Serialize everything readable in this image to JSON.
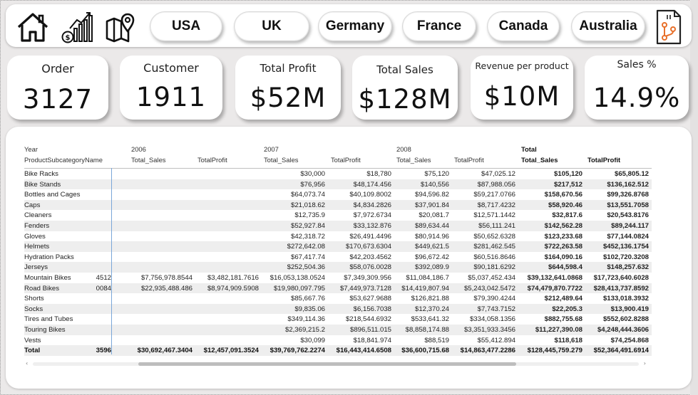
{
  "nav": {
    "countries": [
      "USA",
      "UK",
      "Germany",
      "France",
      "Canada",
      "Australia"
    ]
  },
  "kpis": [
    {
      "label": "Order",
      "value": "3127"
    },
    {
      "label": "Customer",
      "value": "1911"
    },
    {
      "label": "Total Profit",
      "value": "$52M"
    },
    {
      "label": "Total Sales",
      "value": "$128M"
    },
    {
      "label": "Revenue per product",
      "value": "$10M"
    },
    {
      "label": "Sales %",
      "value": "14.9%"
    }
  ],
  "matrix": {
    "row_header_1": "Year",
    "row_header_2": "ProductSubcategoryName",
    "years": [
      "2006",
      "2007",
      "2008",
      "Total"
    ],
    "measure_sales": "Total_Sales",
    "measure_profit": "TotalProfit",
    "rows": [
      {
        "name": "Bike Racks",
        "s06": "",
        "p06": "",
        "s07": "$30,000",
        "p07": "$18,780",
        "s08": "$75,120",
        "p08": "$47,025.12",
        "st": "$105,120",
        "pt": "$65,805.12"
      },
      {
        "name": "Bike Stands",
        "s06": "",
        "p06": "",
        "s07": "$76,956",
        "p07": "$48,174.456",
        "s08": "$140,556",
        "p08": "$87,988.056",
        "st": "$217,512",
        "pt": "$136,162.512"
      },
      {
        "name": "Bottles and Cages",
        "s06": "",
        "p06": "",
        "s07": "$64,073.74",
        "p07": "$40,109.8002",
        "s08": "$94,596.82",
        "p08": "$59,217.0766",
        "st": "$158,670.56",
        "pt": "$99,326.8768"
      },
      {
        "name": "Caps",
        "s06": "",
        "p06": "",
        "s07": "$21,018.62",
        "p07": "$4,834.2826",
        "s08": "$37,901.84",
        "p08": "$8,717.4232",
        "st": "$58,920.46",
        "pt": "$13,551.7058"
      },
      {
        "name": "Cleaners",
        "s06": "",
        "p06": "",
        "s07": "$12,735.9",
        "p07": "$7,972.6734",
        "s08": "$20,081.7",
        "p08": "$12,571.1442",
        "st": "$32,817.6",
        "pt": "$20,543.8176"
      },
      {
        "name": "Fenders",
        "s06": "",
        "p06": "",
        "s07": "$52,927.84",
        "p07": "$33,132.876",
        "s08": "$89,634.44",
        "p08": "$56,111.241",
        "st": "$142,562.28",
        "pt": "$89,244.117"
      },
      {
        "name": "Gloves",
        "s06": "",
        "p06": "",
        "s07": "$42,318.72",
        "p07": "$26,491.4496",
        "s08": "$80,914.96",
        "p08": "$50,652.6328",
        "st": "$123,233.68",
        "pt": "$77,144.0824"
      },
      {
        "name": "Helmets",
        "s06": "",
        "p06": "",
        "s07": "$272,642.08",
        "p07": "$170,673.6304",
        "s08": "$449,621.5",
        "p08": "$281,462.545",
        "st": "$722,263.58",
        "pt": "$452,136.1754"
      },
      {
        "name": "Hydration Packs",
        "s06": "",
        "p06": "",
        "s07": "$67,417.74",
        "p07": "$42,203.4562",
        "s08": "$96,672.42",
        "p08": "$60,516.8646",
        "st": "$164,090.16",
        "pt": "$102,720.3208"
      },
      {
        "name": "Jerseys",
        "s06": "",
        "p06": "",
        "s07": "$252,504.36",
        "p07": "$58,076.0028",
        "s08": "$392,089.9",
        "p08": "$90,181.6292",
        "st": "$644,598.4",
        "pt": "$148,257.632"
      },
      {
        "name": "Mountain Bikes",
        "lead": "4512",
        "s06": "$7,756,978.8544",
        "p06": "$3,482,181.7616",
        "s07": "$16,053,138.0524",
        "p07": "$7,349,309.956",
        "s08": "$11,084,186.7",
        "p08": "$5,037,452.434",
        "st": "$39,132,641.0868",
        "pt": "$17,723,640.6028"
      },
      {
        "name": "Road Bikes",
        "lead": "0084",
        "s06": "$22,935,488.486",
        "p06": "$8,974,909.5908",
        "s07": "$19,980,097.795",
        "p07": "$7,449,973.7128",
        "s08": "$14,419,807.94",
        "p08": "$5,243,042.5472",
        "st": "$74,479,870.7722",
        "pt": "$28,413,737.8592"
      },
      {
        "name": "Shorts",
        "s06": "",
        "p06": "",
        "s07": "$85,667.76",
        "p07": "$53,627.9688",
        "s08": "$126,821.88",
        "p08": "$79,390.4244",
        "st": "$212,489.64",
        "pt": "$133,018.3932"
      },
      {
        "name": "Socks",
        "s06": "",
        "p06": "",
        "s07": "$9,835.06",
        "p07": "$6,156.7038",
        "s08": "$12,370.24",
        "p08": "$7,743.7152",
        "st": "$22,205.3",
        "pt": "$13,900.419"
      },
      {
        "name": "Tires and Tubes",
        "s06": "",
        "p06": "",
        "s07": "$349,114.36",
        "p07": "$218,544.6932",
        "s08": "$533,641.32",
        "p08": "$334,058.1356",
        "st": "$882,755.68",
        "pt": "$552,602.8288"
      },
      {
        "name": "Touring Bikes",
        "s06": "",
        "p06": "",
        "s07": "$2,369,215.2",
        "p07": "$896,511.015",
        "s08": "$8,858,174.88",
        "p08": "$3,351,933.3456",
        "st": "$11,227,390.08",
        "pt": "$4,248,444.3606"
      },
      {
        "name": "Vests",
        "s06": "",
        "p06": "",
        "s07": "$30,099",
        "p07": "$18,841.974",
        "s08": "$88,519",
        "p08": "$55,412.894",
        "st": "$118,618",
        "pt": "$74,254.868"
      },
      {
        "name": "Total",
        "lead": "3596",
        "s06": "$30,692,467.3404",
        "p06": "$12,457,091.3524",
        "s07": "$39,769,762.2274",
        "p07": "$16,443,414.6508",
        "s08": "$36,600,715.68",
        "p08": "$14,863,477.2286",
        "st": "$128,445,759.279",
        "pt": "$52,364,491.6914"
      }
    ]
  }
}
